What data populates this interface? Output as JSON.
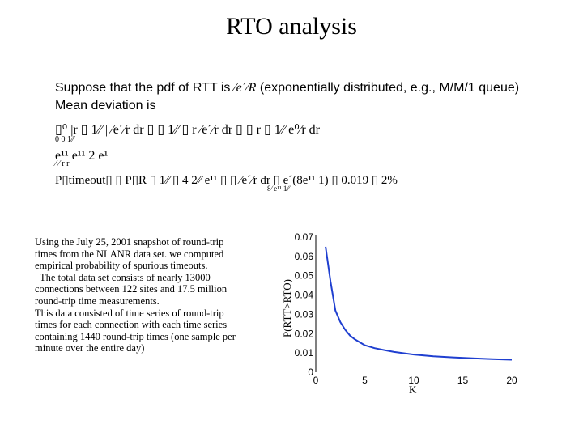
{
  "slide": {
    "title": "RTO analysis",
    "bullet_line1_a": "Suppose that the pdf of RTT is",
    "bullet_line1_sym": "⁄e´⁄R",
    "bullet_line1_b": "(exponentially distributed, e.g., M/M/1 queue)",
    "bullet_line2": "Mean deviation is",
    "math_line1": "▯⁰ |r ▯ 1⁄⁄ | ⁄e´⁄r dr ▯ ▯ 1⁄⁄ ▯ r ⁄e´⁄r dr ▯ ▯ r ▯ 1⁄⁄ e⁰⁄r dr",
    "math_line1_sub": "0                                    0                                  1⁄⁄",
    "math_line2": "e¹¹  e¹¹      2  e¹",
    "math_line2_sub": "⁄     ⁄   r      r",
    "math_line3": "P▯timeout▯ ▯ P▯R ▯ 1⁄⁄ ▯ 4 2⁄⁄ e¹¹ ▯ ▯ ⁄e´⁄r dr ▯ e´(8e¹¹ 1) ▯ 0.019 ▯ 2%",
    "math_line3_sub": "8⁄ e¹¹ 1⁄⁄",
    "description": [
      "Using the July 25, 2001 snapshot of round-trip",
      "times from the NLANR data set. we computed",
      "empirical probability of spurious timeouts.",
      "  The total data set consists of nearly 13000",
      "connections between 122 sites and 17.5 million",
      "round-trip time measurements.",
      "This data consisted of time series of round-trip",
      "times for each connection with each time series",
      "containing 1440 round-trip times (one sample per",
      "minute over the entire day)"
    ]
  },
  "chart_data": {
    "type": "line",
    "xlabel": "K",
    "ylabel": "P(RTT>RTO)",
    "xlim": [
      0,
      20
    ],
    "ylim": [
      0,
      0.07
    ],
    "xticks": [
      0,
      5,
      10,
      15,
      20
    ],
    "yticks": [
      0,
      0.01,
      0.02,
      0.03,
      0.04,
      0.05,
      0.06,
      0.07
    ],
    "xtick_labels": [
      "0",
      "5",
      "10",
      "15",
      "20"
    ],
    "ytick_labels": [
      "0",
      "0.01",
      "0.02",
      "0.03",
      "0.04",
      "0.05",
      "0.06",
      "0.07"
    ],
    "series": [
      {
        "color": "#1f3fd0",
        "x": [
          1,
          1.5,
          2,
          2.5,
          3,
          3.5,
          4,
          5,
          6,
          7,
          8,
          10,
          12,
          14,
          16,
          18,
          20
        ],
        "values": [
          0.065,
          0.047,
          0.032,
          0.026,
          0.022,
          0.019,
          0.017,
          0.014,
          0.0125,
          0.0115,
          0.0105,
          0.0092,
          0.0083,
          0.0077,
          0.0072,
          0.0068,
          0.0065
        ]
      }
    ]
  }
}
